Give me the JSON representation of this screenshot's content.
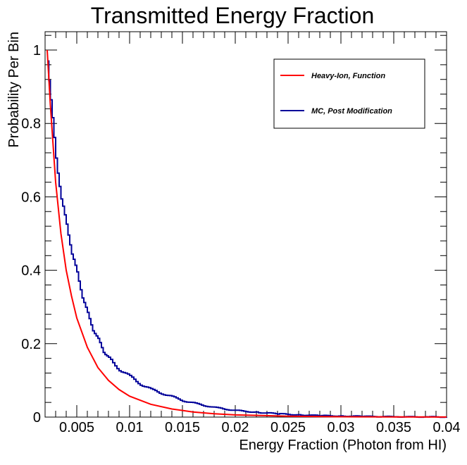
{
  "chart_data": {
    "type": "line",
    "title": "Transmitted Energy Fraction",
    "xlabel": "Energy Fraction (Photon from HI)",
    "ylabel": "Probability Per Bin",
    "xlim": [
      0.002,
      0.04
    ],
    "ylim": [
      0,
      1.05
    ],
    "x_ticks": [
      0.005,
      0.01,
      0.015,
      0.02,
      0.025,
      0.03,
      0.035,
      0.04
    ],
    "x_tick_labels": [
      "0.005",
      "0.01",
      "0.015",
      "0.02",
      "0.025",
      "0.03",
      "0.035",
      "0.04"
    ],
    "y_ticks": [
      0,
      0.2,
      0.4,
      0.6,
      0.8,
      1
    ],
    "y_tick_labels": [
      "0",
      "0.2",
      "0.4",
      "0.6",
      "0.8",
      "1"
    ],
    "legend_position": "top-right",
    "series": [
      {
        "name": "Heavy-Ion, Function",
        "color": "#ff0000",
        "style": "smooth",
        "x": [
          0.0022,
          0.0025,
          0.003,
          0.0035,
          0.004,
          0.0045,
          0.005,
          0.006,
          0.007,
          0.008,
          0.009,
          0.01,
          0.012,
          0.014,
          0.016,
          0.018,
          0.02,
          0.025,
          0.03,
          0.035,
          0.04
        ],
        "y": [
          1.0,
          0.85,
          0.64,
          0.5,
          0.4,
          0.33,
          0.27,
          0.19,
          0.135,
          0.1,
          0.075,
          0.057,
          0.035,
          0.022,
          0.014,
          0.009,
          0.006,
          0.0025,
          0.001,
          0.0004,
          0.0002
        ]
      },
      {
        "name": "MC, Post Modification",
        "color": "#000099",
        "style": "histogram",
        "x": [
          0.0022,
          0.0025,
          0.003,
          0.0035,
          0.004,
          0.0045,
          0.005,
          0.0055,
          0.006,
          0.0065,
          0.007,
          0.0075,
          0.008,
          0.009,
          0.01,
          0.011,
          0.012,
          0.013,
          0.014,
          0.015,
          0.016,
          0.017,
          0.018,
          0.019,
          0.02,
          0.022,
          0.024,
          0.026,
          0.028,
          0.03,
          0.032,
          0.035,
          0.038,
          0.04
        ],
        "y": [
          0.97,
          0.87,
          0.7,
          0.6,
          0.52,
          0.45,
          0.39,
          0.33,
          0.28,
          0.24,
          0.21,
          0.18,
          0.16,
          0.13,
          0.11,
          0.09,
          0.075,
          0.065,
          0.055,
          0.045,
          0.038,
          0.032,
          0.026,
          0.022,
          0.018,
          0.013,
          0.009,
          0.006,
          0.004,
          0.003,
          0.002,
          0.001,
          0.0005,
          0.0003
        ]
      }
    ]
  }
}
